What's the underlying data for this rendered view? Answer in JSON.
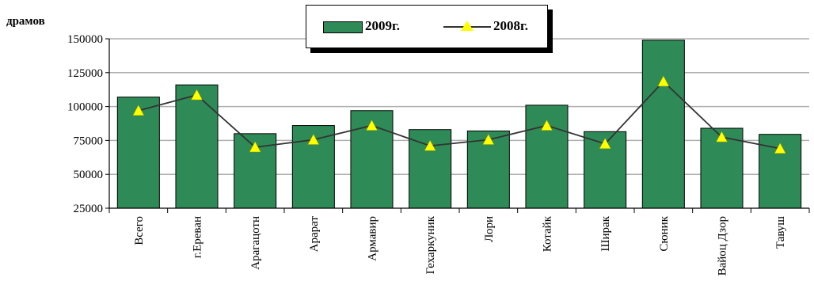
{
  "chart_data": {
    "type": "bar",
    "unit_label": "драмов",
    "categories": [
      "Всего",
      "г.Ереван",
      "Арагацотн",
      "Арарат",
      "Армавир",
      "Гехаркуник",
      "Лори",
      "Котайк",
      "Ширак",
      "Сюник",
      "Вайоц Дзор",
      "Тавуш"
    ],
    "series": [
      {
        "name": "2009г.",
        "type": "bar",
        "color": "#2e8b57",
        "values": [
          107000,
          116000,
          80000,
          86000,
          97000,
          83000,
          82000,
          101000,
          81500,
          149000,
          84000,
          79500
        ]
      },
      {
        "name": "2008г.",
        "type": "line",
        "color": "#333333",
        "marker_color": "#ffff00",
        "values": [
          97000,
          108500,
          70000,
          75500,
          86000,
          71000,
          75500,
          86000,
          72500,
          118500,
          77500,
          69000
        ]
      }
    ],
    "ylim": [
      25000,
      150000
    ],
    "yticks": [
      "25000",
      "50000",
      "75000",
      "100000",
      "125000",
      "150000"
    ],
    "grid": true,
    "legend_position": "top-center"
  }
}
